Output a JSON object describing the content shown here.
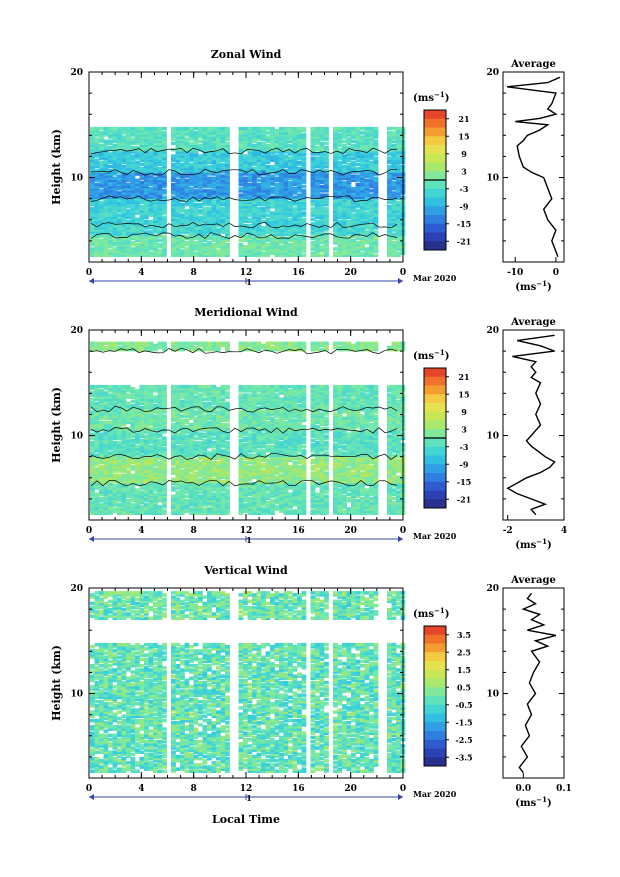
{
  "figure": {
    "time_axis_title": "Local Time",
    "day_label": "1",
    "month_label": "Mar 2020"
  },
  "chart_data": [
    {
      "type": "heatmap",
      "title": "Zonal Wind",
      "ylabel": "Height (km)",
      "xlabel": "Local Time",
      "ylim": [
        2,
        20
      ],
      "xlim": [
        0,
        24
      ],
      "xticks": [
        "0",
        "4",
        "8",
        "12",
        "16",
        "20",
        "0"
      ],
      "yticks": [
        "10",
        "20"
      ],
      "colorbar": {
        "unit": "(ms⁻¹)",
        "ticks": [
          "21",
          "15",
          "9",
          "3",
          "-3",
          "-9",
          "-15",
          "-21"
        ],
        "range": [
          -24,
          24
        ]
      },
      "layers": [
        {
          "from": 2.5,
          "to": 4.5,
          "value": 0
        },
        {
          "from": 4.5,
          "to": 5.5,
          "value": -4
        },
        {
          "from": 5.5,
          "to": 8.0,
          "value": -5
        },
        {
          "from": 8.0,
          "to": 10.5,
          "value": -11
        },
        {
          "from": 10.5,
          "to": 12.5,
          "value": -6
        },
        {
          "from": 12.5,
          "to": 14.5,
          "value": -2
        }
      ],
      "data_gaps_hours": [
        5.8,
        10.9,
        16.6,
        18.2,
        22.3
      ],
      "average_profile": {
        "title": "Average",
        "xlabel": "(ms⁻¹)",
        "xticks": [
          "-10",
          "0"
        ],
        "xlim": [
          -13,
          2
        ],
        "yticks": [
          "10",
          "20"
        ],
        "height_km": [
          2.5,
          3,
          4,
          5,
          6,
          7,
          8,
          9,
          10,
          10.5,
          11,
          12,
          13,
          13.5,
          14,
          14.5,
          15,
          15.3,
          15.6,
          16,
          16.5,
          17,
          18,
          18.6,
          19,
          19.5
        ],
        "values": [
          0.5,
          0,
          -1,
          0,
          -2,
          -3,
          -1,
          -2,
          -3,
          -6,
          -8,
          -9,
          -9.5,
          -8,
          -7,
          -4,
          -2,
          -10,
          -4,
          0,
          -2,
          -1,
          0,
          -12,
          -2,
          1
        ]
      }
    },
    {
      "type": "heatmap",
      "title": "Meridional Wind",
      "ylabel": "Height (km)",
      "xlabel": "Local Time",
      "ylim": [
        2,
        20
      ],
      "xlim": [
        0,
        24
      ],
      "xticks": [
        "0",
        "4",
        "8",
        "12",
        "16",
        "20",
        "0"
      ],
      "yticks": [
        "10",
        "20"
      ],
      "colorbar": {
        "unit": "(ms⁻¹)",
        "ticks": [
          "21",
          "15",
          "9",
          "3",
          "-3",
          "-9",
          "-15",
          "-21"
        ],
        "range": [
          -24,
          24
        ]
      },
      "layers": [
        {
          "from": 2.5,
          "to": 5.5,
          "value": -1
        },
        {
          "from": 5.5,
          "to": 8.0,
          "value": 3
        },
        {
          "from": 8.0,
          "to": 10.5,
          "value": -2
        },
        {
          "from": 10.5,
          "to": 12.5,
          "value": 0
        },
        {
          "from": 12.5,
          "to": 14.5,
          "value": -1
        },
        {
          "from": 18.0,
          "to": 18.6,
          "value": 2
        }
      ],
      "data_gaps_hours": [
        5.8,
        10.9,
        16.6,
        18.2,
        22.3
      ],
      "average_profile": {
        "title": "Average",
        "xlabel": "(ms⁻¹)",
        "xticks": [
          "-2",
          "4"
        ],
        "xlim": [
          -2.5,
          4
        ],
        "yticks": [
          "10",
          "20"
        ],
        "height_km": [
          2.5,
          3,
          3.5,
          4,
          4.5,
          5,
          5.5,
          6,
          6.5,
          7,
          7.5,
          8,
          9,
          9.5,
          10,
          10.5,
          11,
          12,
          13,
          14,
          15,
          15.5,
          16,
          16.5,
          17,
          17.5,
          18,
          18.5,
          19,
          19.5
        ],
        "values": [
          1,
          0.5,
          2,
          0.5,
          -1,
          -2,
          -1,
          0,
          1.5,
          2.5,
          3,
          2,
          0.5,
          0,
          0.5,
          1,
          1.5,
          1,
          1.5,
          1,
          1.5,
          0.5,
          1,
          0.5,
          1,
          -1.5,
          3,
          1.5,
          -1,
          3
        ]
      }
    },
    {
      "type": "heatmap",
      "title": "Vertical Wind",
      "ylabel": "Height (km)",
      "xlabel": "Local Time",
      "ylim": [
        2,
        20
      ],
      "xlim": [
        0,
        24
      ],
      "xticks": [
        "0",
        "4",
        "8",
        "12",
        "16",
        "20",
        "0"
      ],
      "yticks": [
        "10",
        "20"
      ],
      "colorbar": {
        "unit": "(ms⁻¹)",
        "ticks": [
          "3.5",
          "2.5",
          "1.5",
          "0.5",
          "-0.5",
          "-1.5",
          "-2.5",
          "-3.5"
        ],
        "range": [
          -4,
          4
        ]
      },
      "layers": [
        {
          "from": 2.5,
          "to": 14.5,
          "value": -0.2
        },
        {
          "from": 17.0,
          "to": 19.5,
          "value": -0.1
        }
      ],
      "data_gaps_hours": [
        5.8,
        10.9,
        16.6,
        18.2,
        22.3
      ],
      "average_profile": {
        "title": "Average",
        "xlabel": "(ms⁻¹)",
        "xticks": [
          "0.0",
          "0.1"
        ],
        "xlim": [
          -0.05,
          0.1
        ],
        "yticks": [
          "10",
          "20"
        ],
        "height_km": [
          2.5,
          3,
          4,
          5,
          6,
          7,
          8,
          9,
          10,
          11,
          12,
          13,
          14,
          14.5,
          15,
          15.5,
          16,
          16.5,
          17,
          17.5,
          18,
          18.5,
          19,
          19.5
        ],
        "values": [
          0,
          -0.01,
          0.01,
          -0.005,
          0.015,
          0.005,
          0.02,
          0.01,
          0.03,
          0.015,
          0.025,
          0.04,
          0.02,
          0.06,
          0.03,
          0.08,
          0.01,
          0.05,
          0.02,
          0.04,
          0.0,
          0.03,
          0.01,
          0.02
        ]
      }
    }
  ]
}
